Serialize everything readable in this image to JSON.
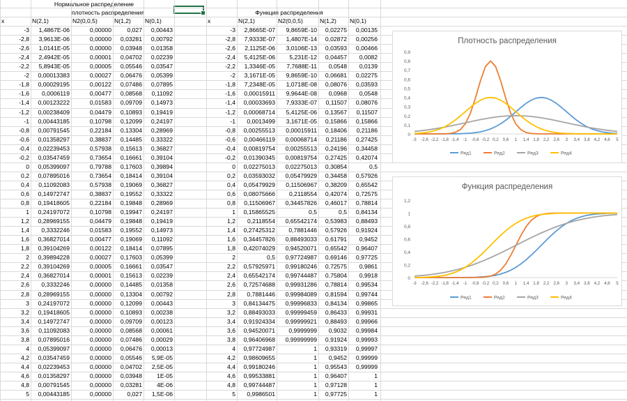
{
  "sheet": {
    "title_line1": "Нормальное распределение",
    "left_header": "плотность распределения",
    "right_header": "Функция распределения",
    "left_cols": [
      "x",
      "N(2,1)",
      "N2(0,0,5)",
      "N(1,2)",
      "N(0,1)"
    ],
    "right_cols": [
      "x",
      "N(2,1)",
      "N2(0,0,5)",
      "N(1,2)",
      "N(0,1)"
    ],
    "left_rows": [
      [
        "-3",
        "1,4867E-06",
        "0,00000",
        "0,027",
        "0,00443"
      ],
      [
        "-2,8",
        "3,9613E-06",
        "0,00000",
        "0,03281",
        "0,00792"
      ],
      [
        "-2,6",
        "1,0141E-05",
        "0,00000",
        "0,03948",
        "0,01358"
      ],
      [
        "-2,4",
        "2,4942E-05",
        "0,00001",
        "0,04702",
        "0,02239"
      ],
      [
        "-2,2",
        "5,8943E-05",
        "0,00005",
        "0,05546",
        "0,03547"
      ],
      [
        "-2",
        "0,00013383",
        "0,00027",
        "0,06476",
        "0,05399"
      ],
      [
        "-1,8",
        "0,00029195",
        "0,00122",
        "0,07486",
        "0,07895"
      ],
      [
        "-1,6",
        "0,0006119",
        "0,00477",
        "0,08568",
        "0,11092"
      ],
      [
        "-1,4",
        "0,00123222",
        "0,01583",
        "0,09709",
        "0,14973"
      ],
      [
        "-1,2",
        "0,00238409",
        "0,04479",
        "0,10893",
        "0,19419"
      ],
      [
        "-1",
        "0,00443185",
        "0,10798",
        "0,12099",
        "0,24197"
      ],
      [
        "-0,8",
        "0,00791545",
        "0,22184",
        "0,13304",
        "0,28969"
      ],
      [
        "-0,6",
        "0,01358297",
        "0,38837",
        "0,14485",
        "0,33322"
      ],
      [
        "-0,4",
        "0,02239453",
        "0,57938",
        "0,15613",
        "0,36827"
      ],
      [
        "-0,2",
        "0,03547459",
        "0,73654",
        "0,16661",
        "0,39104"
      ],
      [
        "0",
        "0,05399097",
        "0,79788",
        "0,17603",
        "0,39894"
      ],
      [
        "0,2",
        "0,07895016",
        "0,73654",
        "0,18414",
        "0,39104"
      ],
      [
        "0,4",
        "0,11092083",
        "0,57938",
        "0,19069",
        "0,36827"
      ],
      [
        "0,6",
        "0,14972747",
        "0,38837",
        "0,19552",
        "0,33322"
      ],
      [
        "0,8",
        "0,19418605",
        "0,22184",
        "0,19848",
        "0,28969"
      ],
      [
        "1",
        "0,24197072",
        "0,10798",
        "0,19947",
        "0,24197"
      ],
      [
        "1,2",
        "0,28969155",
        "0,04479",
        "0,19848",
        "0,19419"
      ],
      [
        "1,4",
        "0,3332246",
        "0,01583",
        "0,19552",
        "0,14973"
      ],
      [
        "1,6",
        "0,36827014",
        "0,00477",
        "0,19069",
        "0,11092"
      ],
      [
        "1,8",
        "0,39104269",
        "0,00122",
        "0,18414",
        "0,07895"
      ],
      [
        "2",
        "0,39894228",
        "0,00027",
        "0,17603",
        "0,05399"
      ],
      [
        "2,2",
        "0,39104269",
        "0,00005",
        "0,16661",
        "0,03547"
      ],
      [
        "2,4",
        "0,36827014",
        "0,00001",
        "0,15613",
        "0,02239"
      ],
      [
        "2,6",
        "0,3332246",
        "0,00000",
        "0,14485",
        "0,01358"
      ],
      [
        "2,8",
        "0,28969155",
        "0,00000",
        "0,13304",
        "0,00792"
      ],
      [
        "3",
        "0,24197072",
        "0,00000",
        "0,12099",
        "0,00443"
      ],
      [
        "3,2",
        "0,19418605",
        "0,00000",
        "0,10893",
        "0,00238"
      ],
      [
        "3,4",
        "0,14972747",
        "0,00000",
        "0,09709",
        "0,00123"
      ],
      [
        "3,6",
        "0,11092083",
        "0,00000",
        "0,08568",
        "0,00061"
      ],
      [
        "3,8",
        "0,07895016",
        "0,00000",
        "0,07486",
        "0,00029"
      ],
      [
        "4",
        "0,05399097",
        "0,00000",
        "0,06476",
        "0,00013"
      ],
      [
        "4,2",
        "0,03547459",
        "0,00000",
        "0,05546",
        "5,9E-05"
      ],
      [
        "4,4",
        "0,02239453",
        "0,00000",
        "0,04702",
        "2,5E-05"
      ],
      [
        "4,6",
        "0,01358297",
        "0,00000",
        "0,03948",
        "1E-05"
      ],
      [
        "4,8",
        "0,00791545",
        "0,00000",
        "0,03281",
        "4E-06"
      ],
      [
        "5",
        "0,00443185",
        "0,00000",
        "0,027",
        "1,5E-06"
      ]
    ],
    "right_rows": [
      [
        "-3",
        "2,8665E-07",
        "9,8659E-10",
        "0,02275",
        "0,00135"
      ],
      [
        "-2,8",
        "7,9333E-07",
        "1,4807E-14",
        "0,02872",
        "0,00256"
      ],
      [
        "-2,6",
        "2,1125E-06",
        "3,0106E-13",
        "0,03593",
        "0,00466"
      ],
      [
        "-2,4",
        "5,4125E-06",
        "5,231E-12",
        "0,04457",
        "0,0082"
      ],
      [
        "-2,2",
        "1,3346E-05",
        "7,7688E-11",
        "0,0548",
        "0,0139"
      ],
      [
        "-2",
        "3,1671E-05",
        "9,8659E-10",
        "0,06681",
        "0,02275"
      ],
      [
        "-1,8",
        "7,2348E-05",
        "1,0718E-08",
        "0,08076",
        "0,03593"
      ],
      [
        "-1,6",
        "0,00015911",
        "9,9644E-08",
        "0,0968",
        "0,0548"
      ],
      [
        "-1,4",
        "0,00033693",
        "7,9333E-07",
        "0,11507",
        "0,08076"
      ],
      [
        "-1,2",
        "0,00068714",
        "5,4125E-06",
        "0,13567",
        "0,11507"
      ],
      [
        "-1",
        "0,0013499",
        "3,1671E-05",
        "0,15866",
        "0,15866"
      ],
      [
        "-0,8",
        "0,00255513",
        "0,00015911",
        "0,18406",
        "0,21186"
      ],
      [
        "-0,6",
        "0,00466119",
        "0,00068714",
        "0,21186",
        "0,27425"
      ],
      [
        "-0,4",
        "0,00819754",
        "0,00255513",
        "0,24196",
        "0,34458"
      ],
      [
        "-0,2",
        "0,01390345",
        "0,00819754",
        "0,27425",
        "0,42074"
      ],
      [
        "0",
        "0,02275013",
        "0,02275013",
        "0,30854",
        "0,5"
      ],
      [
        "0,2",
        "0,03593032",
        "0,05479929",
        "0,34458",
        "0,57926"
      ],
      [
        "0,4",
        "0,05479929",
        "0,11506967",
        "0,38209",
        "0,65542"
      ],
      [
        "0,6",
        "0,08075666",
        "0,2118554",
        "0,42074",
        "0,72575"
      ],
      [
        "0,8",
        "0,11506967",
        "0,34457826",
        "0,46017",
        "0,78814"
      ],
      [
        "1",
        "0,15865525",
        "0,5",
        "0,5",
        "0,84134"
      ],
      [
        "1,2",
        "0,2118554",
        "0,65542174",
        "0,53983",
        "0,88493"
      ],
      [
        "1,4",
        "0,27425312",
        "0,7881446",
        "0,57926",
        "0,91924"
      ],
      [
        "1,6",
        "0,34457826",
        "0,88493033",
        "0,61791",
        "0,9452"
      ],
      [
        "1,8",
        "0,42074029",
        "0,94520071",
        "0,65542",
        "0,96407"
      ],
      [
        "2",
        "0,5",
        "0,97724987",
        "0,69146",
        "0,97725"
      ],
      [
        "2,2",
        "0,57925971",
        "0,99180246",
        "0,72575",
        "0,9861"
      ],
      [
        "2,4",
        "0,65542174",
        "0,99744487",
        "0,75804",
        "0,9918"
      ],
      [
        "2,6",
        "0,72574688",
        "0,99931286",
        "0,78814",
        "0,99534"
      ],
      [
        "2,8",
        "0,7881446",
        "0,99984089",
        "0,81594",
        "0,99744"
      ],
      [
        "3",
        "0,84134475",
        "0,99996833",
        "0,84134",
        "0,99865"
      ],
      [
        "3,2",
        "0,88493033",
        "0,99999459",
        "0,86433",
        "0,99931"
      ],
      [
        "3,4",
        "0,91924334",
        "0,99999921",
        "0,88493",
        "0,99966"
      ],
      [
        "3,6",
        "0,94520071",
        "0,9999999",
        "0,9032",
        "0,99984"
      ],
      [
        "3,8",
        "0,96406968",
        "0,99999999",
        "0,91924",
        "0,99993"
      ],
      [
        "4",
        "0,97724987",
        "1",
        "0,93319",
        "0,99997"
      ],
      [
        "4,2",
        "0,98609655",
        "1",
        "0,9452",
        "0,99999"
      ],
      [
        "4,4",
        "0,99180246",
        "1",
        "0,95543",
        "0,99999"
      ],
      [
        "4,6",
        "0,99533881",
        "1",
        "0,96407",
        "1"
      ],
      [
        "4,8",
        "0,99744487",
        "1",
        "0,97128",
        "1"
      ],
      [
        "5",
        "0,9986501",
        "1",
        "0,97725",
        "1"
      ]
    ]
  },
  "chart_data": [
    {
      "type": "line",
      "title": "Плотность распределения",
      "xlabel": "",
      "ylabel": "",
      "ylim": [
        0,
        0.9
      ],
      "yticks": [
        "0",
        "0,1",
        "0,2",
        "0,3",
        "0,4",
        "0,5",
        "0,6",
        "0,7",
        "0,8",
        "0,9"
      ],
      "xticks": [
        "-3",
        "-2,6",
        "-2,2",
        "-1,8",
        "-1,4",
        "-1",
        "-0,6",
        "-0,2",
        "0,2",
        "0,6",
        "1",
        "1,4",
        "1,8",
        "2,2",
        "2,6",
        "3",
        "3,4",
        "3,8",
        "4,2",
        "4,6",
        "5"
      ],
      "legend": "bottom",
      "grid": false,
      "x": [
        -3,
        -2.8,
        -2.6,
        -2.4,
        -2.2,
        -2,
        -1.8,
        -1.6,
        -1.4,
        -1.2,
        -1,
        -0.8,
        -0.6,
        -0.4,
        -0.2,
        0,
        0.2,
        0.4,
        0.6,
        0.8,
        1,
        1.2,
        1.4,
        1.6,
        1.8,
        2,
        2.2,
        2.4,
        2.6,
        2.8,
        3,
        3.2,
        3.4,
        3.6,
        3.8,
        4,
        4.2,
        4.4,
        4.6,
        4.8,
        5
      ],
      "series": [
        {
          "name": "Ряд1",
          "color": "#5b9bd5",
          "values": [
            1.5e-06,
            4e-06,
            1e-05,
            2.5e-05,
            5.9e-05,
            0.000134,
            0.000292,
            0.000612,
            0.001232,
            0.002384,
            0.004432,
            0.007915,
            0.013583,
            0.022395,
            0.035475,
            0.053991,
            0.07895,
            0.110921,
            0.149727,
            0.194186,
            0.241971,
            0.289692,
            0.333225,
            0.36827,
            0.391043,
            0.398942,
            0.391043,
            0.36827,
            0.333225,
            0.289692,
            0.241971,
            0.194186,
            0.149727,
            0.110921,
            0.07895,
            0.053991,
            0.035475,
            0.022395,
            0.013583,
            0.007915,
            0.004432
          ]
        },
        {
          "name": "Ряд2",
          "color": "#ed7d31",
          "values": [
            0,
            0,
            0,
            1e-05,
            5e-05,
            0.00027,
            0.00122,
            0.00477,
            0.01583,
            0.04479,
            0.10798,
            0.22184,
            0.38837,
            0.57938,
            0.73654,
            0.79788,
            0.73654,
            0.57938,
            0.38837,
            0.22184,
            0.10798,
            0.04479,
            0.01583,
            0.00477,
            0.00122,
            0.00027,
            5e-05,
            1e-05,
            0,
            0,
            0,
            0,
            0,
            0,
            0,
            0,
            0,
            0,
            0,
            0,
            0
          ]
        },
        {
          "name": "Ряд3",
          "color": "#a5a5a5",
          "values": [
            0.027,
            0.03281,
            0.03948,
            0.04702,
            0.05546,
            0.06476,
            0.07486,
            0.08568,
            0.09709,
            0.10893,
            0.12099,
            0.13304,
            0.14485,
            0.15613,
            0.16661,
            0.17603,
            0.18414,
            0.19069,
            0.19552,
            0.19848,
            0.19947,
            0.19848,
            0.19552,
            0.19069,
            0.18414,
            0.17603,
            0.16661,
            0.15613,
            0.14485,
            0.13304,
            0.12099,
            0.10893,
            0.09709,
            0.08568,
            0.07486,
            0.06476,
            0.05546,
            0.04702,
            0.03948,
            0.03281,
            0.027
          ]
        },
        {
          "name": "Ряд4",
          "color": "#ffc000",
          "values": [
            0.00443,
            0.00792,
            0.01358,
            0.02239,
            0.03547,
            0.05399,
            0.07895,
            0.11092,
            0.14973,
            0.19419,
            0.24197,
            0.28969,
            0.33322,
            0.36827,
            0.39104,
            0.39894,
            0.39104,
            0.36827,
            0.33322,
            0.28969,
            0.24197,
            0.19419,
            0.14973,
            0.11092,
            0.07895,
            0.05399,
            0.03547,
            0.02239,
            0.01358,
            0.00792,
            0.00443,
            0.00238,
            0.00123,
            0.00061,
            0.00029,
            0.00013,
            5.9e-05,
            2.5e-05,
            1e-05,
            4e-06,
            1.5e-06
          ]
        }
      ]
    },
    {
      "type": "line",
      "title": "Функция распределения",
      "xlabel": "",
      "ylabel": "",
      "ylim": [
        0,
        1.2
      ],
      "yticks": [
        "0",
        "0,2",
        "0,4",
        "0,6",
        "0,8",
        "1",
        "1,2"
      ],
      "xticks": [
        "-3",
        "-2,6",
        "-2,2",
        "-1,8",
        "-1,4",
        "-1",
        "-0,6",
        "-0,2",
        "0,2",
        "0,6",
        "1",
        "1,4",
        "1,8",
        "2,2",
        "2,6",
        "3",
        "3,4",
        "3,8",
        "4,2",
        "4,6",
        "5"
      ],
      "legend": "bottom",
      "grid": false,
      "x": [
        -3,
        -2.8,
        -2.6,
        -2.4,
        -2.2,
        -2,
        -1.8,
        -1.6,
        -1.4,
        -1.2,
        -1,
        -0.8,
        -0.6,
        -0.4,
        -0.2,
        0,
        0.2,
        0.4,
        0.6,
        0.8,
        1,
        1.2,
        1.4,
        1.6,
        1.8,
        2,
        2.2,
        2.4,
        2.6,
        2.8,
        3,
        3.2,
        3.4,
        3.6,
        3.8,
        4,
        4.2,
        4.4,
        4.6,
        4.8,
        5
      ],
      "series": [
        {
          "name": "Ряд1",
          "color": "#5b9bd5",
          "values": [
            0,
            0,
            0,
            5e-06,
            1.3e-05,
            3.2e-05,
            7.2e-05,
            0.000159,
            0.000337,
            0.000687,
            0.00135,
            0.002555,
            0.004661,
            0.008198,
            0.013903,
            0.02275,
            0.03593,
            0.054799,
            0.080757,
            0.11507,
            0.158655,
            0.211855,
            0.274253,
            0.344578,
            0.42074,
            0.5,
            0.57926,
            0.655422,
            0.725747,
            0.788145,
            0.841345,
            0.88493,
            0.919243,
            0.945201,
            0.96407,
            0.97725,
            0.986097,
            0.991802,
            0.995339,
            0.997445,
            0.99865
          ]
        },
        {
          "name": "Ряд2",
          "color": "#ed7d31",
          "values": [
            0,
            0,
            0,
            0,
            0,
            0,
            0,
            0,
            1e-06,
            5e-06,
            3.2e-05,
            0.000159,
            0.000687,
            0.002555,
            0.008198,
            0.02275,
            0.054799,
            0.11507,
            0.211855,
            0.344578,
            0.5,
            0.655422,
            0.788145,
            0.88493,
            0.945201,
            0.97725,
            0.991802,
            0.997445,
            0.999313,
            0.999841,
            0.999968,
            0.999995,
            0.999999,
            1,
            1,
            1,
            1,
            1,
            1,
            1,
            1
          ]
        },
        {
          "name": "Ряд3",
          "color": "#a5a5a5",
          "values": [
            0.02275,
            0.02872,
            0.03593,
            0.04457,
            0.0548,
            0.06681,
            0.08076,
            0.0968,
            0.11507,
            0.13567,
            0.15866,
            0.18406,
            0.21186,
            0.24196,
            0.27425,
            0.30854,
            0.34458,
            0.38209,
            0.42074,
            0.46017,
            0.5,
            0.53983,
            0.57926,
            0.61791,
            0.65542,
            0.69146,
            0.72575,
            0.75804,
            0.78814,
            0.81594,
            0.84134,
            0.86433,
            0.88493,
            0.9032,
            0.91924,
            0.93319,
            0.9452,
            0.95543,
            0.96407,
            0.97128,
            0.97725
          ]
        },
        {
          "name": "Ряд4",
          "color": "#ffc000",
          "values": [
            0.00135,
            0.00256,
            0.00466,
            0.0082,
            0.0139,
            0.02275,
            0.03593,
            0.0548,
            0.08076,
            0.11507,
            0.15866,
            0.21186,
            0.27425,
            0.34458,
            0.42074,
            0.5,
            0.57926,
            0.65542,
            0.72575,
            0.78814,
            0.84134,
            0.88493,
            0.91924,
            0.9452,
            0.96407,
            0.97725,
            0.9861,
            0.9918,
            0.99534,
            0.99744,
            0.99865,
            0.99931,
            0.99966,
            0.99984,
            0.99993,
            0.99997,
            0.99999,
            0.99999,
            1,
            1,
            1
          ]
        }
      ]
    }
  ]
}
